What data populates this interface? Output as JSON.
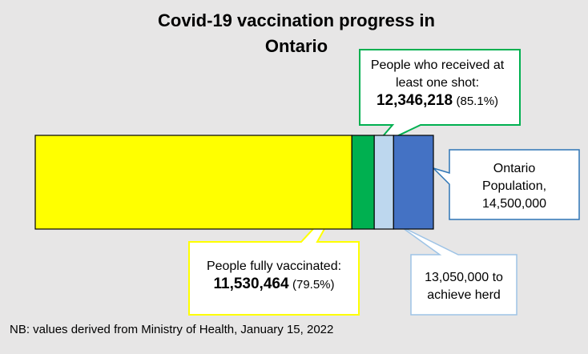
{
  "title_line1": "Covid-19 vaccination progress in",
  "title_line2": "Ontario",
  "note": "NB: values derived from Ministry of Health, January 15, 2022",
  "chart_data": {
    "type": "bar",
    "orientation": "horizontal",
    "stacked": true,
    "title": "Covid-19 vaccination progress in Ontario",
    "xlim": [
      0,
      14500000
    ],
    "grid": false,
    "segments": [
      {
        "label": "People fully vaccinated",
        "start": 0,
        "end": 11530464,
        "color": "#ffff00"
      },
      {
        "label": "People who received at least one shot",
        "start": 11530464,
        "end": 12346218,
        "color": "#00b050"
      },
      {
        "label": "13,050,000 to achieve herd",
        "start": 12346218,
        "end": 13050000,
        "color": "#bdd7ee"
      },
      {
        "label": "Ontario Population",
        "start": 13050000,
        "end": 14500000,
        "color": "#4472c4"
      }
    ],
    "annotations": {
      "one_shot": {
        "line1": "People who received at",
        "line2": "least one shot:",
        "value": "12,346,218",
        "pct": "(85.1%)",
        "border": "#00b050"
      },
      "fully": {
        "line1": "People fully vaccinated:",
        "value": "11,530,464",
        "pct": "(79.5%)",
        "border": "#ffff00"
      },
      "population": {
        "line1": "Ontario",
        "line2": "Population,",
        "line3": "14,500,000",
        "border": "#2e75b6"
      },
      "herd": {
        "line1": "13,050,000 to",
        "line2": "achieve herd",
        "border": "#9dc3e6"
      }
    }
  }
}
